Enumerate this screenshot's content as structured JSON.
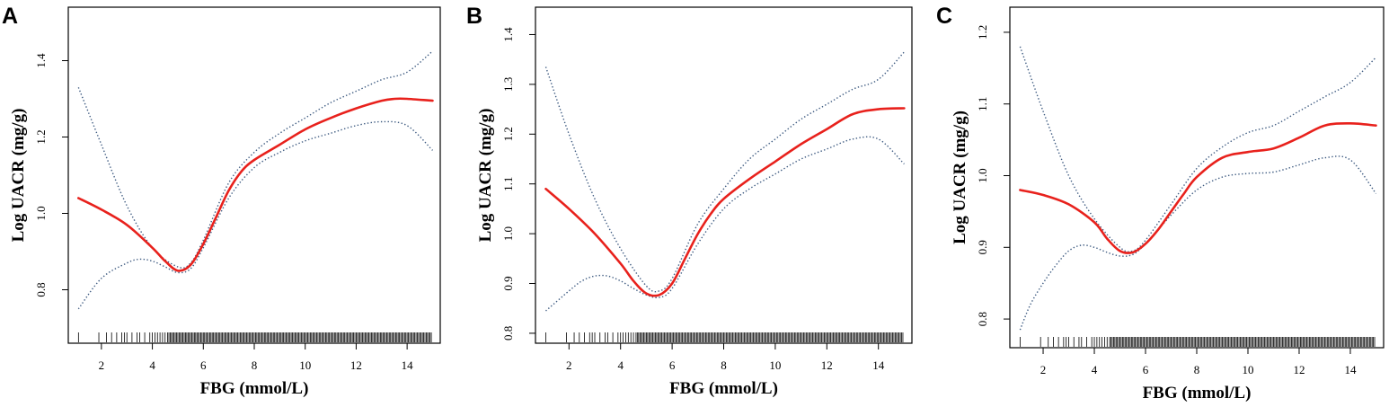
{
  "colors": {
    "fit": "#e8211c",
    "ci": "#3d5a80",
    "axis": "#000000"
  },
  "chart_data": [
    {
      "panel": "A",
      "type": "line",
      "xlabel": "FBG (mmol/L)",
      "ylabel": "Log UACR (mg/g)",
      "xlim": [
        0.7,
        15.3
      ],
      "ylim": [
        0.66,
        1.54
      ],
      "xticks": [
        2,
        4,
        6,
        8,
        10,
        12,
        14
      ],
      "yticks": [
        0.8,
        1.0,
        1.2,
        1.4
      ],
      "ytick_labels": [
        "0.8",
        "1.0",
        "1.2",
        "1.4"
      ],
      "series": [
        {
          "role": "fit",
          "x": [
            1.1,
            2.0,
            3.0,
            4.0,
            4.5,
            5.0,
            5.5,
            6.0,
            6.5,
            7.0,
            7.5,
            8.0,
            9.0,
            10.0,
            11.0,
            12.0,
            13.0,
            13.5,
            14.0,
            15.0
          ],
          "y": [
            1.04,
            1.01,
            0.97,
            0.91,
            0.875,
            0.85,
            0.865,
            0.92,
            0.99,
            1.06,
            1.11,
            1.14,
            1.18,
            1.22,
            1.25,
            1.275,
            1.295,
            1.3,
            1.3,
            1.295
          ]
        },
        {
          "role": "upper",
          "x": [
            1.1,
            2.0,
            3.0,
            4.0,
            5.0,
            5.5,
            6.0,
            7.0,
            8.0,
            9.0,
            10.0,
            11.0,
            12.0,
            13.0,
            14.0,
            15.0
          ],
          "y": [
            1.33,
            1.18,
            1.02,
            0.91,
            0.86,
            0.87,
            0.93,
            1.08,
            1.16,
            1.21,
            1.25,
            1.29,
            1.32,
            1.35,
            1.37,
            1.425
          ]
        },
        {
          "role": "lower",
          "x": [
            1.1,
            2.0,
            3.0,
            3.5,
            4.0,
            4.5,
            5.0,
            5.5,
            6.0,
            7.0,
            8.0,
            9.0,
            10.0,
            11.0,
            12.0,
            13.0,
            14.0,
            15.0
          ],
          "y": [
            0.75,
            0.83,
            0.87,
            0.88,
            0.875,
            0.86,
            0.845,
            0.855,
            0.91,
            1.04,
            1.12,
            1.16,
            1.19,
            1.21,
            1.23,
            1.24,
            1.23,
            1.165
          ]
        }
      ]
    },
    {
      "panel": "B",
      "type": "line",
      "xlabel": "FBG (mmol/L)",
      "ylabel": "Log UACR (mg/g)",
      "xlim": [
        0.7,
        15.3
      ],
      "ylim": [
        0.78,
        1.455
      ],
      "xticks": [
        2,
        4,
        6,
        8,
        10,
        12,
        14
      ],
      "yticks": [
        0.8,
        0.9,
        1.0,
        1.1,
        1.2,
        1.3,
        1.4
      ],
      "ytick_labels": [
        "0.8",
        "0.9",
        "1.0",
        "1.1",
        "1.2",
        "1.3",
        "1.4"
      ],
      "series": [
        {
          "role": "fit",
          "x": [
            1.1,
            2.0,
            3.0,
            4.0,
            4.5,
            5.0,
            5.5,
            6.0,
            6.5,
            7.0,
            7.5,
            8.0,
            9.0,
            10.0,
            11.0,
            12.0,
            13.0,
            14.0,
            15.0
          ],
          "y": [
            1.09,
            1.05,
            1.0,
            0.94,
            0.905,
            0.88,
            0.877,
            0.9,
            0.95,
            1.0,
            1.04,
            1.07,
            1.11,
            1.145,
            1.18,
            1.21,
            1.24,
            1.25,
            1.252
          ]
        },
        {
          "role": "upper",
          "x": [
            1.1,
            2.0,
            3.0,
            4.0,
            5.0,
            5.5,
            6.0,
            7.0,
            8.0,
            9.0,
            10.0,
            11.0,
            12.0,
            13.0,
            14.0,
            15.0
          ],
          "y": [
            1.335,
            1.2,
            1.07,
            0.97,
            0.895,
            0.885,
            0.91,
            1.02,
            1.09,
            1.15,
            1.19,
            1.23,
            1.26,
            1.29,
            1.31,
            1.365
          ]
        },
        {
          "role": "lower",
          "x": [
            1.1,
            2.0,
            2.5,
            3.0,
            3.5,
            4.0,
            4.5,
            5.0,
            5.5,
            6.0,
            7.0,
            8.0,
            9.0,
            10.0,
            11.0,
            12.0,
            13.0,
            14.0,
            15.0
          ],
          "y": [
            0.845,
            0.885,
            0.905,
            0.915,
            0.915,
            0.905,
            0.89,
            0.877,
            0.872,
            0.89,
            0.98,
            1.05,
            1.09,
            1.12,
            1.15,
            1.17,
            1.19,
            1.19,
            1.14
          ]
        }
      ]
    },
    {
      "panel": "C",
      "type": "line",
      "xlabel": "FBG (mmol/L)",
      "ylabel": "Log UACR (mg/g)",
      "xlim": [
        0.7,
        15.3
      ],
      "ylim": [
        0.76,
        1.235
      ],
      "xticks": [
        2,
        4,
        6,
        8,
        10,
        12,
        14
      ],
      "yticks": [
        0.8,
        0.9,
        1.0,
        1.1,
        1.2
      ],
      "ytick_labels": [
        "0.8",
        "0.9",
        "1.0",
        "1.1",
        "1.2"
      ],
      "series": [
        {
          "role": "fit",
          "x": [
            1.1,
            2.0,
            3.0,
            4.0,
            4.5,
            5.0,
            5.5,
            6.0,
            6.5,
            7.0,
            7.5,
            8.0,
            9.0,
            10.0,
            11.0,
            12.0,
            13.0,
            14.0,
            15.0
          ],
          "y": [
            0.98,
            0.973,
            0.96,
            0.935,
            0.912,
            0.895,
            0.893,
            0.905,
            0.925,
            0.95,
            0.975,
            0.998,
            1.025,
            1.033,
            1.038,
            1.053,
            1.07,
            1.073,
            1.07
          ]
        },
        {
          "role": "upper",
          "x": [
            1.1,
            2.0,
            3.0,
            4.0,
            5.0,
            5.5,
            6.0,
            7.0,
            8.0,
            9.0,
            10.0,
            11.0,
            12.0,
            13.0,
            14.0,
            15.0
          ],
          "y": [
            1.18,
            1.09,
            1.0,
            0.94,
            0.9,
            0.895,
            0.91,
            0.96,
            1.01,
            1.04,
            1.06,
            1.07,
            1.09,
            1.11,
            1.13,
            1.165
          ]
        },
        {
          "role": "lower",
          "x": [
            1.1,
            1.5,
            2.0,
            2.5,
            3.0,
            3.5,
            4.0,
            4.5,
            5.0,
            5.5,
            6.0,
            7.0,
            8.0,
            9.0,
            10.0,
            11.0,
            12.0,
            13.0,
            14.0,
            15.0
          ],
          "y": [
            0.785,
            0.82,
            0.85,
            0.875,
            0.895,
            0.903,
            0.9,
            0.893,
            0.888,
            0.89,
            0.905,
            0.945,
            0.98,
            0.998,
            1.003,
            1.005,
            1.015,
            1.025,
            1.022,
            0.975
          ]
        }
      ]
    }
  ]
}
